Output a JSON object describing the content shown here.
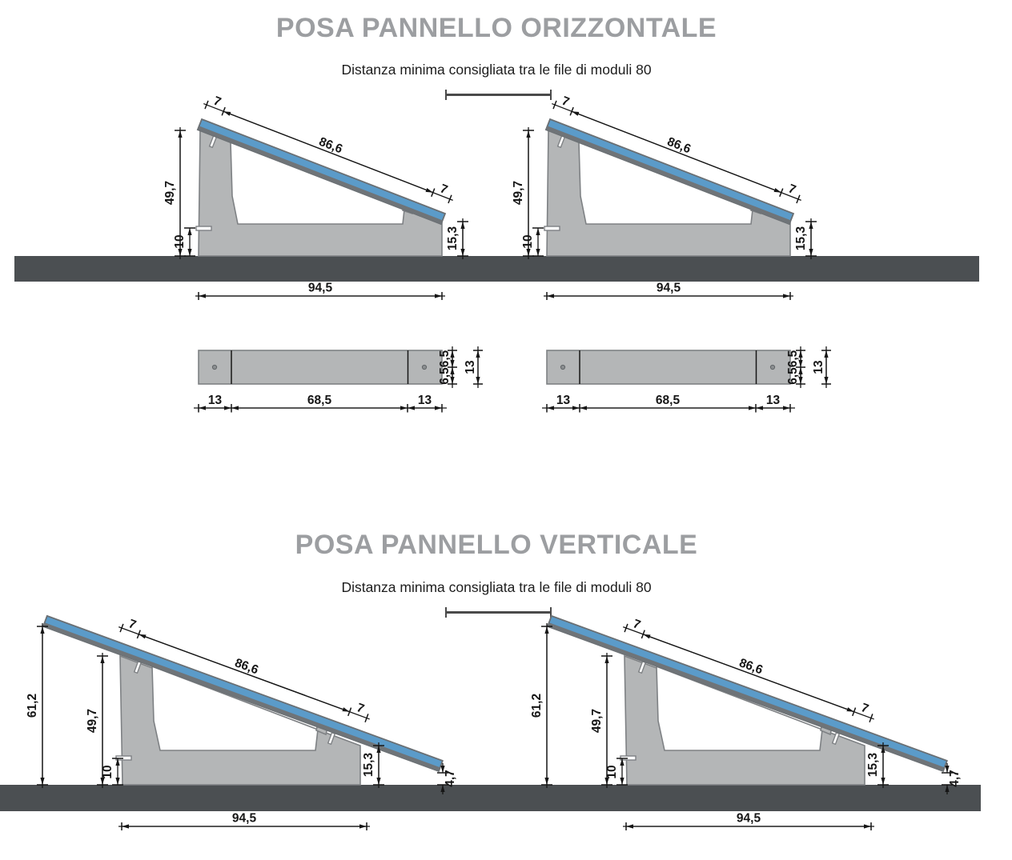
{
  "sections": [
    {
      "title": "POSA PANNELLO ORIZZONTALE",
      "subtitle": "Distanza minima consigliata tra le file di moduli 80",
      "side_view": {
        "overhang_top": "7",
        "panel_length": "86,6",
        "overhang_bottom": "7",
        "height_left": "49,7",
        "base_offset": "10",
        "height_right": "15,3",
        "base_width": "94,5"
      },
      "plan_view": {
        "seg_left": "13",
        "seg_mid": "68,5",
        "seg_right": "13",
        "half_top": "6,5",
        "half_bottom": "6,5",
        "depth": "13"
      }
    },
    {
      "title": "POSA PANNELLO VERTICALE",
      "subtitle": "Distanza minima consigliata tra le file di moduli 80",
      "side_view": {
        "overhang_top": "7",
        "panel_length": "86,6",
        "overhang_bottom": "7",
        "total_height": "61,2",
        "height_left": "49,7",
        "base_offset": "10",
        "height_right": "15,3",
        "tip_height": "4,7",
        "base_width": "94,5"
      }
    }
  ],
  "colors": {
    "panel_blue": "#5b9bc9",
    "base_gray": "#b4b6b7",
    "ground_dark": "#4b4f52",
    "title_gray": "#9c9ea1",
    "line_black": "#161616"
  }
}
